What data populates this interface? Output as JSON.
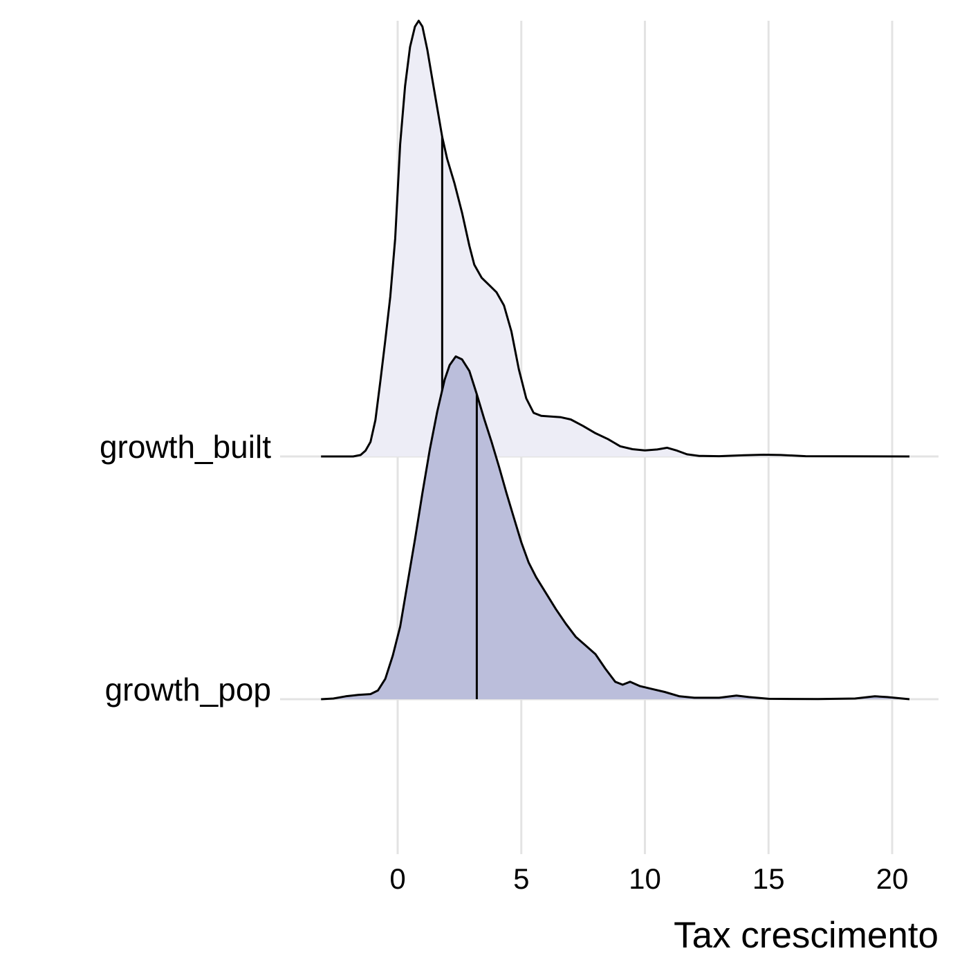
{
  "chart_data": {
    "type": "ridgeline",
    "xlabel": "Tax crescimento",
    "ylabel": "",
    "xlim": [
      -3.3,
      20.8
    ],
    "x_ticks": [
      "0",
      "5",
      "10",
      "15",
      "20"
    ],
    "x_tick_values": [
      0,
      5,
      10,
      15,
      20
    ],
    "grid": true,
    "series": [
      {
        "name": "growth_built",
        "fill": "#ededf6",
        "median": 1.8,
        "density": [
          [
            -3.1,
            0.0
          ],
          [
            -1.8,
            0.0
          ],
          [
            -1.5,
            0.01
          ],
          [
            -1.3,
            0.04
          ],
          [
            -1.1,
            0.1
          ],
          [
            -0.9,
            0.25
          ],
          [
            -0.7,
            0.52
          ],
          [
            -0.5,
            0.8
          ],
          [
            -0.3,
            1.1
          ],
          [
            -0.1,
            1.5
          ],
          [
            0.1,
            2.15
          ],
          [
            0.3,
            2.55
          ],
          [
            0.5,
            2.82
          ],
          [
            0.7,
            2.96
          ],
          [
            0.85,
            3.0
          ],
          [
            1.0,
            2.96
          ],
          [
            1.2,
            2.8
          ],
          [
            1.4,
            2.6
          ],
          [
            1.6,
            2.4
          ],
          [
            1.8,
            2.2
          ],
          [
            2.0,
            2.05
          ],
          [
            2.3,
            1.88
          ],
          [
            2.6,
            1.68
          ],
          [
            2.9,
            1.45
          ],
          [
            3.1,
            1.32
          ],
          [
            3.4,
            1.23
          ],
          [
            3.7,
            1.18
          ],
          [
            4.0,
            1.13
          ],
          [
            4.3,
            1.04
          ],
          [
            4.6,
            0.86
          ],
          [
            4.9,
            0.6
          ],
          [
            5.2,
            0.4
          ],
          [
            5.5,
            0.3
          ],
          [
            5.8,
            0.28
          ],
          [
            6.2,
            0.275
          ],
          [
            6.6,
            0.27
          ],
          [
            7.0,
            0.255
          ],
          [
            7.5,
            0.21
          ],
          [
            8.0,
            0.16
          ],
          [
            8.5,
            0.12
          ],
          [
            9.0,
            0.07
          ],
          [
            9.5,
            0.05
          ],
          [
            10.0,
            0.042
          ],
          [
            10.5,
            0.048
          ],
          [
            10.9,
            0.06
          ],
          [
            11.3,
            0.04
          ],
          [
            11.7,
            0.015
          ],
          [
            12.2,
            0.004
          ],
          [
            13.0,
            0.002
          ],
          [
            14.0,
            0.008
          ],
          [
            14.8,
            0.012
          ],
          [
            15.5,
            0.01
          ],
          [
            16.5,
            0.002
          ],
          [
            18.0,
            0.001
          ],
          [
            20.7,
            0.0
          ]
        ]
      },
      {
        "name": "growth_pop",
        "fill": "#bbbedb",
        "median": 3.2,
        "density": [
          [
            -3.1,
            0.0
          ],
          [
            -2.6,
            0.005
          ],
          [
            -2.1,
            0.02
          ],
          [
            -1.6,
            0.03
          ],
          [
            -1.1,
            0.035
          ],
          [
            -0.8,
            0.06
          ],
          [
            -0.5,
            0.14
          ],
          [
            -0.2,
            0.3
          ],
          [
            0.1,
            0.5
          ],
          [
            0.4,
            0.8
          ],
          [
            0.7,
            1.1
          ],
          [
            1.0,
            1.42
          ],
          [
            1.3,
            1.72
          ],
          [
            1.6,
            1.98
          ],
          [
            1.9,
            2.2
          ],
          [
            2.1,
            2.3
          ],
          [
            2.35,
            2.36
          ],
          [
            2.6,
            2.34
          ],
          [
            2.9,
            2.26
          ],
          [
            3.2,
            2.1
          ],
          [
            3.5,
            1.93
          ],
          [
            3.8,
            1.77
          ],
          [
            4.1,
            1.6
          ],
          [
            4.4,
            1.42
          ],
          [
            4.7,
            1.25
          ],
          [
            5.0,
            1.08
          ],
          [
            5.3,
            0.94
          ],
          [
            5.6,
            0.84
          ],
          [
            6.0,
            0.73
          ],
          [
            6.4,
            0.62
          ],
          [
            6.8,
            0.52
          ],
          [
            7.2,
            0.43
          ],
          [
            7.6,
            0.37
          ],
          [
            8.0,
            0.31
          ],
          [
            8.4,
            0.21
          ],
          [
            8.8,
            0.12
          ],
          [
            9.1,
            0.1
          ],
          [
            9.4,
            0.12
          ],
          [
            9.8,
            0.09
          ],
          [
            10.3,
            0.07
          ],
          [
            10.8,
            0.05
          ],
          [
            11.4,
            0.02
          ],
          [
            12.0,
            0.01
          ],
          [
            13.0,
            0.01
          ],
          [
            13.7,
            0.025
          ],
          [
            14.2,
            0.015
          ],
          [
            15.0,
            0.003
          ],
          [
            17.0,
            0.001
          ],
          [
            18.5,
            0.005
          ],
          [
            19.3,
            0.02
          ],
          [
            19.8,
            0.015
          ],
          [
            20.7,
            0.0
          ]
        ]
      }
    ]
  }
}
